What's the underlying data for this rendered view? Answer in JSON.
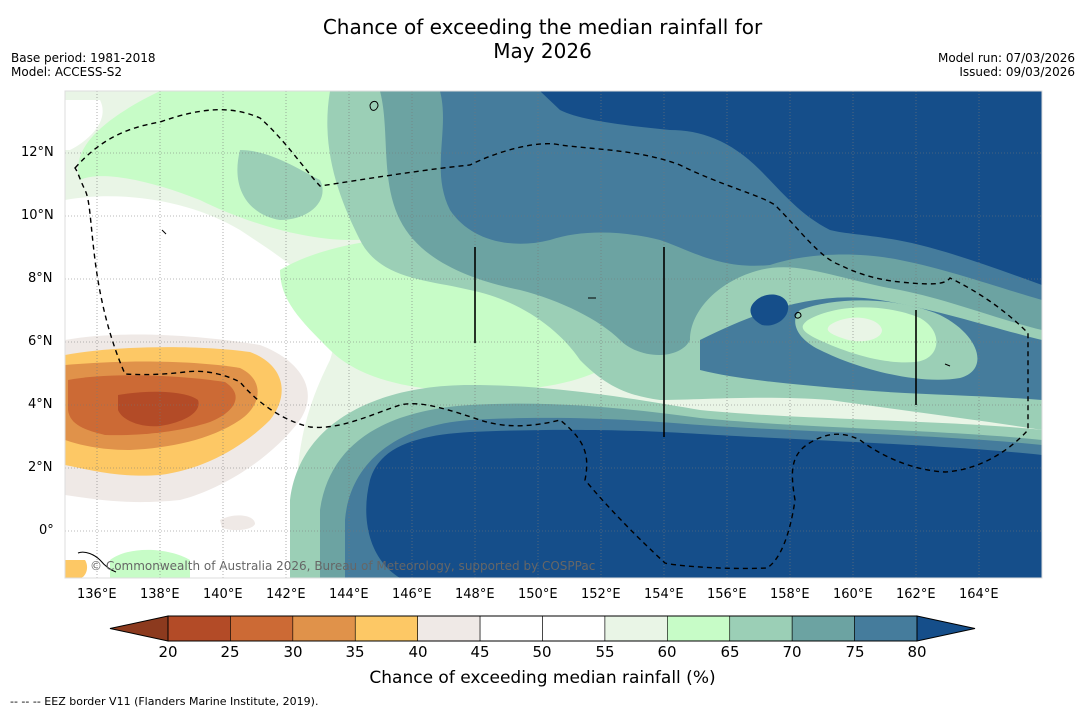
{
  "title": {
    "line1": "Chance of exceeding the median rainfall for",
    "line2": "May 2026"
  },
  "meta_left": {
    "base_period": "Base period: 1981-2018",
    "model": "Model: ACCESS-S2"
  },
  "meta_right": {
    "model_run": "Model run: 07/03/2026",
    "issued": "Issued: 09/03/2026"
  },
  "map": {
    "copyright": "© Commonwealth of Australia 2026, Bureau of Meteorology, supported by COSPPac",
    "lat_labels": [
      "12°N",
      "10°N",
      "8°N",
      "6°N",
      "4°N",
      "2°N",
      "0°"
    ],
    "lon_labels": [
      "136°E",
      "138°E",
      "140°E",
      "142°E",
      "144°E",
      "146°E",
      "148°E",
      "150°E",
      "152°E",
      "154°E",
      "156°E",
      "158°E",
      "160°E",
      "162°E",
      "164°E"
    ]
  },
  "legend": {
    "title": "Chance of exceeding median rainfall (%)",
    "ticks": [
      "20",
      "25",
      "30",
      "35",
      "40",
      "45",
      "50",
      "55",
      "60",
      "65",
      "70",
      "75",
      "80"
    ],
    "colors": [
      "#8c3a1e",
      "#b34b27",
      "#cc6a35",
      "#e0924a",
      "#fdc865",
      "#efe9e6",
      "#ffffff",
      "#ffffff",
      "#e9f5e6",
      "#c7fcc7",
      "#9bcfb6",
      "#6ca3a2",
      "#457c9c",
      "#154e8a"
    ]
  },
  "footnote": "--  --  -- EEZ border V11 (Flanders Marine Institute, 2019)."
}
